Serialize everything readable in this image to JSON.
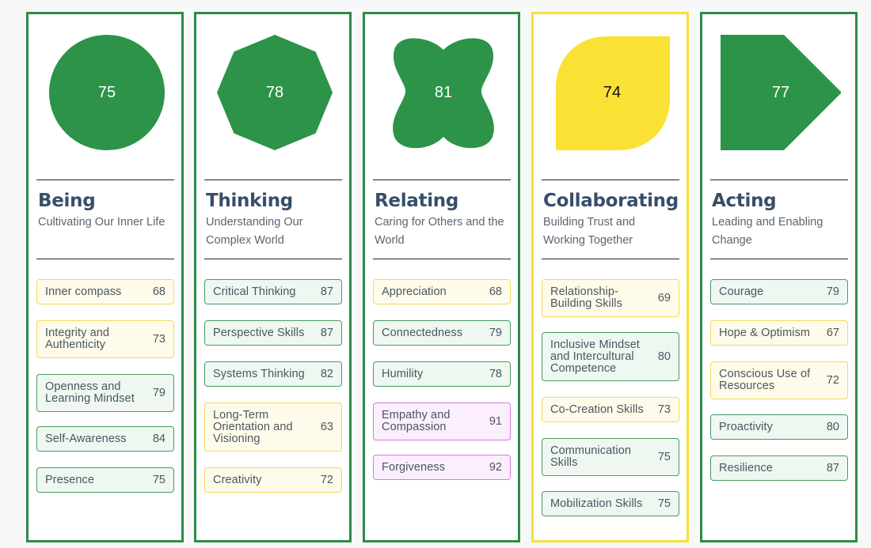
{
  "columns": [
    {
      "title": "Being",
      "subtitle": "Cultivating Our Inner Life",
      "score": "75",
      "shape": "circle",
      "shape_color": "#2c9349",
      "theme": "green",
      "items": [
        {
          "label": "Inner compass",
          "value": "68",
          "color": "yellow"
        },
        {
          "label": "Integrity and Authenticity",
          "value": "73",
          "color": "yellow"
        },
        {
          "label": "Openness and Learning Mindset",
          "value": "79",
          "color": "green"
        },
        {
          "label": "Self-Awareness",
          "value": "84",
          "color": "green"
        },
        {
          "label": "Presence",
          "value": "75",
          "color": "green"
        }
      ]
    },
    {
      "title": "Thinking",
      "subtitle": "Understanding Our Complex World",
      "score": "78",
      "shape": "octagon",
      "shape_color": "#2c9349",
      "theme": "green",
      "items": [
        {
          "label": "Critical Thinking",
          "value": "87",
          "color": "green"
        },
        {
          "label": "Perspective Skills",
          "value": "87",
          "color": "green"
        },
        {
          "label": "Systems Thinking",
          "value": "82",
          "color": "green"
        },
        {
          "label": "Long-Term Orientation and Visioning",
          "value": "63",
          "color": "yellow"
        },
        {
          "label": "Creativity",
          "value": "72",
          "color": "yellow"
        }
      ]
    },
    {
      "title": "Relating",
      "subtitle": "Caring for Others and the World",
      "score": "81",
      "shape": "blob",
      "shape_color": "#2c9349",
      "theme": "green",
      "items": [
        {
          "label": "Appreciation",
          "value": "68",
          "color": "yellow"
        },
        {
          "label": "Connectedness",
          "value": "79",
          "color": "green"
        },
        {
          "label": "Humility",
          "value": "78",
          "color": "green"
        },
        {
          "label": "Empathy and Compassion",
          "value": "91",
          "color": "pink"
        },
        {
          "label": "Forgiveness",
          "value": "92",
          "color": "pink"
        }
      ]
    },
    {
      "title": "Collaborating",
      "subtitle": "Building Trust and Working Together",
      "score": "74",
      "shape": "leaf",
      "shape_color": "#fbe134",
      "theme": "yellow",
      "items": [
        {
          "label": "Relationship-Building Skills",
          "value": "69",
          "color": "yellow"
        },
        {
          "label": "Inclusive Mindset and Intercultural Competence",
          "value": "80",
          "color": "green"
        },
        {
          "label": "Co-Creation Skills",
          "value": "73",
          "color": "yellow"
        },
        {
          "label": "Communication Skills",
          "value": "75",
          "color": "green"
        },
        {
          "label": "Mobilization Skills",
          "value": "75",
          "color": "green"
        }
      ]
    },
    {
      "title": "Acting",
      "subtitle": "Leading and Enabling Change",
      "score": "77",
      "shape": "arrow",
      "shape_color": "#2c9349",
      "theme": "green",
      "items": [
        {
          "label": "Courage",
          "value": "79",
          "color": "green"
        },
        {
          "label": "Hope & Optimism",
          "value": "67",
          "color": "yellow"
        },
        {
          "label": "Conscious Use of Resources",
          "value": "72",
          "color": "yellow"
        },
        {
          "label": "Proactivity",
          "value": "80",
          "color": "green"
        },
        {
          "label": "Resilience",
          "value": "87",
          "color": "green"
        }
      ]
    }
  ]
}
